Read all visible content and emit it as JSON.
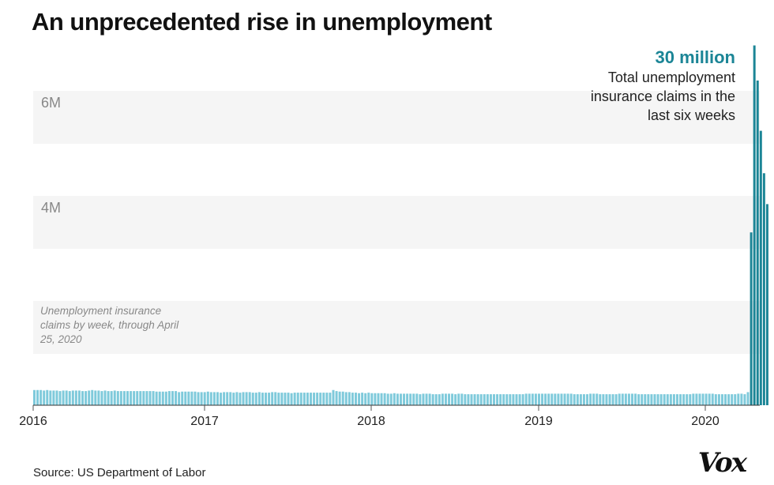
{
  "chart_data": {
    "type": "bar",
    "title": "An unprecedented rise in unemployment",
    "subtitle_note": "Unemployment insurance claims by week, through April 25, 2020",
    "annotation": {
      "value": "30 million",
      "text": "Total unemployment insurance claims in the last six weeks"
    },
    "source": "Source: US Department of Labor",
    "y_unit": "millions of claims",
    "ylim": [
      0,
      7
    ],
    "y_ticks": [
      {
        "value": 4,
        "label": "4M"
      },
      {
        "value": 6,
        "label": "6M"
      }
    ],
    "x_ticks": [
      "2016",
      "2017",
      "2018",
      "2019",
      "2020"
    ],
    "grid": "alternating horizontal bands",
    "colors": {
      "normal": "#7fcadb",
      "surge": "#1b8596",
      "annotation": "#1b8596"
    },
    "weekly_values": [
      0.29,
      0.29,
      0.29,
      0.28,
      0.29,
      0.28,
      0.28,
      0.28,
      0.27,
      0.28,
      0.28,
      0.27,
      0.28,
      0.28,
      0.28,
      0.27,
      0.27,
      0.28,
      0.29,
      0.28,
      0.28,
      0.27,
      0.28,
      0.27,
      0.27,
      0.28,
      0.27,
      0.27,
      0.27,
      0.27,
      0.27,
      0.27,
      0.27,
      0.27,
      0.27,
      0.27,
      0.27,
      0.27,
      0.26,
      0.26,
      0.26,
      0.26,
      0.27,
      0.27,
      0.27,
      0.25,
      0.26,
      0.26,
      0.26,
      0.26,
      0.26,
      0.25,
      0.25,
      0.25,
      0.26,
      0.25,
      0.25,
      0.25,
      0.24,
      0.25,
      0.25,
      0.25,
      0.24,
      0.25,
      0.24,
      0.25,
      0.25,
      0.25,
      0.24,
      0.24,
      0.25,
      0.24,
      0.24,
      0.24,
      0.25,
      0.25,
      0.24,
      0.24,
      0.24,
      0.24,
      0.23,
      0.24,
      0.24,
      0.24,
      0.24,
      0.24,
      0.24,
      0.24,
      0.24,
      0.24,
      0.24,
      0.24,
      0.24,
      0.29,
      0.27,
      0.26,
      0.26,
      0.25,
      0.25,
      0.24,
      0.24,
      0.23,
      0.24,
      0.23,
      0.24,
      0.23,
      0.23,
      0.23,
      0.23,
      0.23,
      0.22,
      0.22,
      0.23,
      0.22,
      0.22,
      0.22,
      0.22,
      0.22,
      0.22,
      0.22,
      0.21,
      0.22,
      0.22,
      0.22,
      0.21,
      0.21,
      0.21,
      0.22,
      0.22,
      0.22,
      0.22,
      0.21,
      0.22,
      0.22,
      0.21,
      0.21,
      0.21,
      0.21,
      0.21,
      0.21,
      0.21,
      0.21,
      0.21,
      0.21,
      0.21,
      0.21,
      0.21,
      0.21,
      0.21,
      0.21,
      0.21,
      0.21,
      0.21,
      0.22,
      0.22,
      0.22,
      0.22,
      0.22,
      0.22,
      0.22,
      0.22,
      0.22,
      0.22,
      0.22,
      0.22,
      0.22,
      0.22,
      0.22,
      0.21,
      0.21,
      0.21,
      0.21,
      0.21,
      0.22,
      0.22,
      0.22,
      0.21,
      0.21,
      0.21,
      0.21,
      0.21,
      0.21,
      0.22,
      0.22,
      0.22,
      0.22,
      0.22,
      0.22,
      0.21,
      0.21,
      0.21,
      0.21,
      0.21,
      0.21,
      0.21,
      0.21,
      0.21,
      0.21,
      0.21,
      0.21,
      0.21,
      0.21,
      0.21,
      0.21,
      0.21,
      0.22,
      0.22,
      0.22,
      0.22,
      0.22,
      0.22,
      0.22,
      0.21,
      0.21,
      0.21,
      0.21,
      0.21,
      0.21,
      0.21,
      0.22,
      0.22,
      0.21,
      0.25,
      3.3,
      6.87,
      6.2,
      5.24,
      4.43,
      3.84
    ]
  },
  "logo": "Vox"
}
